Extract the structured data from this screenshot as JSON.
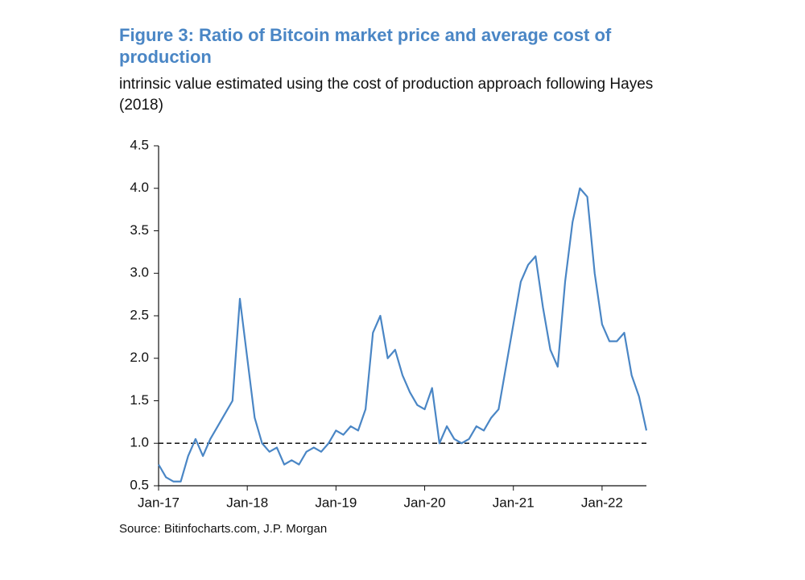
{
  "chart_data": {
    "type": "line",
    "title": "Figure 3: Ratio of Bitcoin market price and average cost of production",
    "subtitle": "intrinsic value estimated using the cost of production approach following Hayes (2018)",
    "source": "Source: Bitinfocharts.com, J.P. Morgan",
    "x": [
      "Jan-17",
      "Feb-17",
      "Mar-17",
      "Apr-17",
      "May-17",
      "Jun-17",
      "Jul-17",
      "Aug-17",
      "Sep-17",
      "Oct-17",
      "Nov-17",
      "Dec-17",
      "Jan-18",
      "Feb-18",
      "Mar-18",
      "Apr-18",
      "May-18",
      "Jun-18",
      "Jul-18",
      "Aug-18",
      "Sep-18",
      "Oct-18",
      "Nov-18",
      "Dec-18",
      "Jan-19",
      "Feb-19",
      "Mar-19",
      "Apr-19",
      "May-19",
      "Jun-19",
      "Jul-19",
      "Aug-19",
      "Sep-19",
      "Oct-19",
      "Nov-19",
      "Dec-19",
      "Jan-20",
      "Feb-20",
      "Mar-20",
      "Apr-20",
      "May-20",
      "Jun-20",
      "Jul-20",
      "Aug-20",
      "Sep-20",
      "Oct-20",
      "Nov-20",
      "Dec-20",
      "Jan-21",
      "Feb-21",
      "Mar-21",
      "Apr-21",
      "May-21",
      "Jun-21",
      "Jul-21",
      "Aug-21",
      "Sep-21",
      "Oct-21",
      "Nov-21",
      "Dec-21",
      "Jan-22",
      "Feb-22",
      "Mar-22",
      "Apr-22",
      "May-22",
      "Jun-22",
      "Jul-22"
    ],
    "series": [
      {
        "name": "Ratio",
        "color": "#4a86c5",
        "values": [
          0.75,
          0.6,
          0.55,
          0.55,
          0.85,
          1.05,
          0.85,
          1.05,
          1.2,
          1.35,
          1.5,
          2.7,
          2.0,
          1.3,
          1.0,
          0.9,
          0.95,
          0.75,
          0.8,
          0.75,
          0.9,
          0.95,
          0.9,
          1.0,
          1.15,
          1.1,
          1.2,
          1.15,
          1.4,
          2.3,
          2.5,
          2.0,
          2.1,
          1.8,
          1.6,
          1.45,
          1.4,
          1.65,
          1.0,
          1.2,
          1.05,
          1.0,
          1.05,
          1.2,
          1.15,
          1.3,
          1.4,
          1.9,
          2.4,
          2.9,
          3.1,
          3.2,
          2.6,
          2.1,
          1.9,
          2.9,
          3.6,
          4.0,
          3.9,
          3.0,
          2.4,
          2.2,
          2.2,
          2.3,
          1.8,
          1.55,
          1.15
        ]
      }
    ],
    "xticks": [
      "Jan-17",
      "Jan-18",
      "Jan-19",
      "Jan-20",
      "Jan-21",
      "Jan-22"
    ],
    "ylim": [
      0.5,
      4.5
    ],
    "yticks": [
      0.5,
      {
        "value": 1,
        "label": "1.0"
      },
      1.5,
      {
        "value": 2,
        "label": "2.0"
      },
      2.5,
      {
        "value": 3,
        "label": "3.0"
      },
      3.5,
      {
        "value": 4,
        "label": "4.0"
      },
      4.5
    ],
    "reference_line": 1,
    "grid": false
  }
}
